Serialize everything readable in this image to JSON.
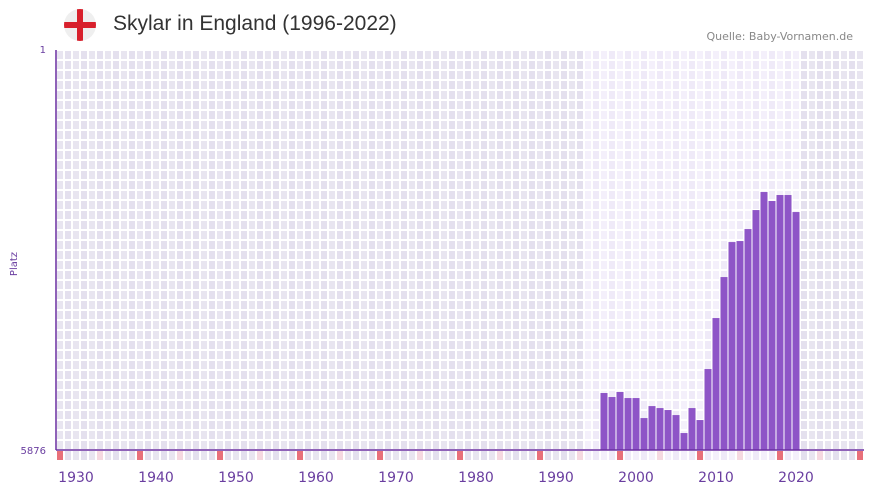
{
  "header": {
    "title": "Skylar in England (1996-2022)",
    "source": "Quelle: Baby-Vornamen.de",
    "flag_icon": "england-flag-icon"
  },
  "colors": {
    "bar": "#8e55c7",
    "axis": "#6a2fa0",
    "bg_dark": "#e4e0ee",
    "bg_light": "#efeaf8",
    "marker_red": "#e8707a",
    "marker_pink": "#f5d8e0"
  },
  "chart_data": {
    "type": "bar",
    "title": "Skylar in England (1996-2022)",
    "xlabel": "",
    "ylabel": "Platz",
    "xlim": [
      1928,
      2028
    ],
    "ylim": [
      5876,
      1
    ],
    "yticks": [
      "1",
      "5876"
    ],
    "xticks": [
      1930,
      1940,
      1950,
      1960,
      1970,
      1980,
      1990,
      2000,
      2010,
      2020
    ],
    "highlight_range": [
      1994,
      2020
    ],
    "x": [
      1996,
      1997,
      1998,
      1999,
      2000,
      2001,
      2002,
      2003,
      2004,
      2005,
      2006,
      2007,
      2008,
      2009,
      2010,
      2011,
      2012,
      2013,
      2014,
      2015,
      2016,
      2017,
      2018,
      2019,
      2020
    ],
    "values": [
      5039,
      5098,
      5024,
      5113,
      5113,
      5407,
      5231,
      5260,
      5289,
      5363,
      5627,
      5260,
      5436,
      4687,
      3938,
      3336,
      2822,
      2807,
      2631,
      2352,
      2087,
      2219,
      2131,
      2131,
      2381
    ]
  }
}
